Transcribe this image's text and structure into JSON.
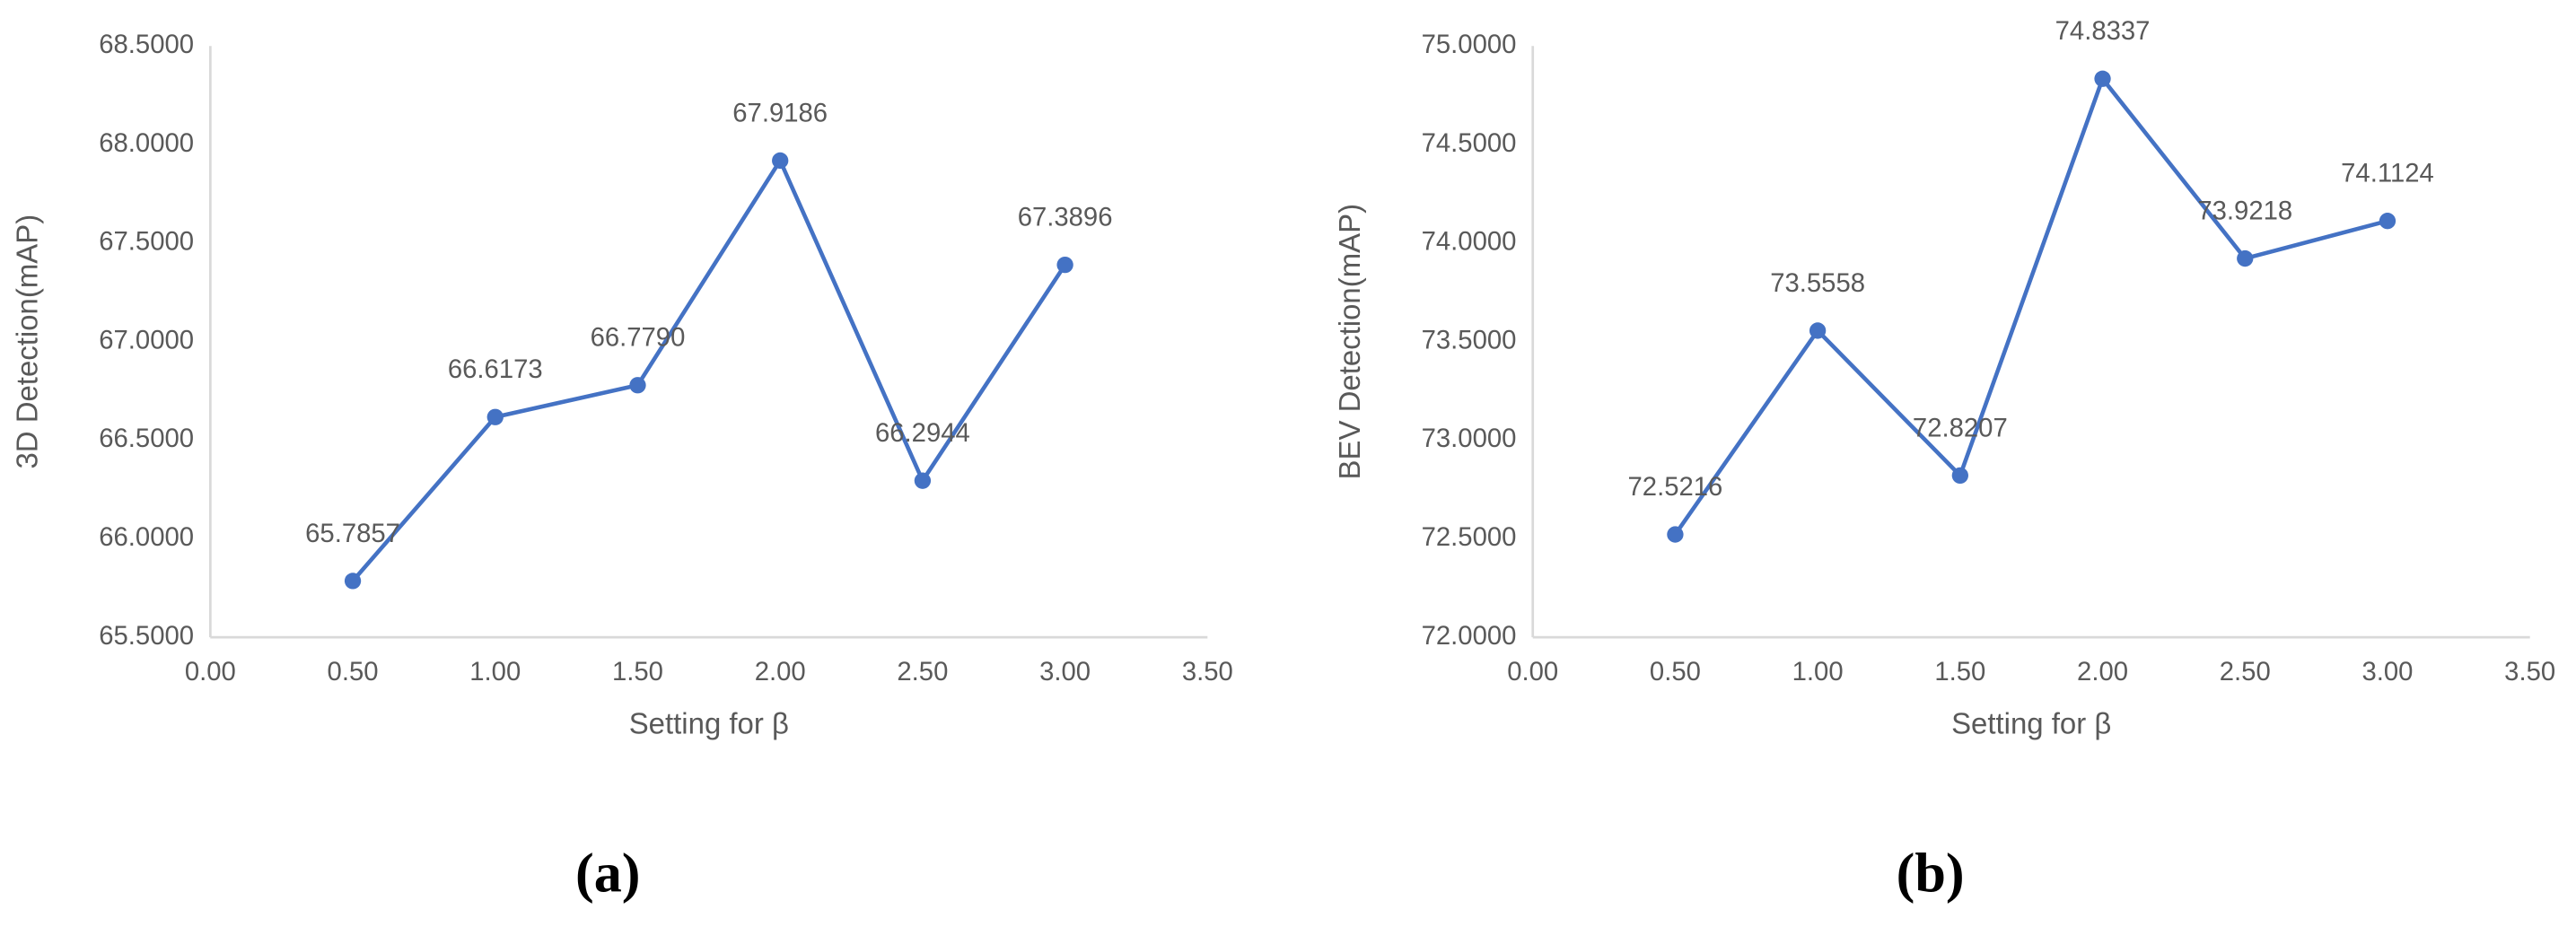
{
  "chart_data": [
    {
      "type": "line",
      "caption": "(a)",
      "xlabel": "Setting for β",
      "ylabel": "3D Detection(mAP)",
      "color": "#4472c4",
      "x": [
        0.5,
        1,
        1.5,
        2,
        2.5,
        3
      ],
      "values": [
        65.7857,
        66.6173,
        66.779,
        67.9186,
        66.2944,
        67.3896
      ],
      "value_labels": [
        "65.7857",
        "66.6173",
        "66.7790",
        "67.9186",
        "66.2944",
        "67.3896"
      ],
      "xlim": [
        0,
        3.5
      ],
      "xticks": [
        {
          "value": 0,
          "label": "0.00"
        },
        {
          "value": 0.5,
          "label": "0.50"
        },
        {
          "value": 1,
          "label": "1.00"
        },
        {
          "value": 1.5,
          "label": "1.50"
        },
        {
          "value": 2,
          "label": "2.00"
        },
        {
          "value": 2.5,
          "label": "2.50"
        },
        {
          "value": 3,
          "label": "3.00"
        },
        {
          "value": 3.5,
          "label": "3.50"
        }
      ],
      "ylim": [
        65.5,
        68.5
      ],
      "yticks": [
        {
          "value": 65.5,
          "label": "65.5000"
        },
        {
          "value": 66,
          "label": "66.0000"
        },
        {
          "value": 66.5,
          "label": "66.5000"
        },
        {
          "value": 67,
          "label": "67.0000"
        },
        {
          "value": 67.5,
          "label": "67.5000"
        },
        {
          "value": 68,
          "label": "68.0000"
        },
        {
          "value": 68.5,
          "label": "68.5000"
        }
      ]
    },
    {
      "type": "line",
      "caption": "(b)",
      "xlabel": "Setting for β",
      "ylabel": "BEV Detection(mAP)",
      "color": "#4472c4",
      "x": [
        0.5,
        1,
        1.5,
        2,
        2.5,
        3
      ],
      "values": [
        72.5216,
        73.5558,
        72.8207,
        74.8337,
        73.9218,
        74.1124
      ],
      "value_labels": [
        "72.5216",
        "73.5558",
        "72.8207",
        "74.8337",
        "73.9218",
        "74.1124"
      ],
      "xlim": [
        0,
        3.5
      ],
      "xticks": [
        {
          "value": 0,
          "label": "0.00"
        },
        {
          "value": 0.5,
          "label": "0.50"
        },
        {
          "value": 1,
          "label": "1.00"
        },
        {
          "value": 1.5,
          "label": "1.50"
        },
        {
          "value": 2,
          "label": "2.00"
        },
        {
          "value": 2.5,
          "label": "2.50"
        },
        {
          "value": 3,
          "label": "3.00"
        },
        {
          "value": 3.5,
          "label": "3.50"
        }
      ],
      "ylim": [
        72,
        75
      ],
      "yticks": [
        {
          "value": 72,
          "label": "72.0000"
        },
        {
          "value": 72.5,
          "label": "72.5000"
        },
        {
          "value": 73,
          "label": "73.0000"
        },
        {
          "value": 73.5,
          "label": "73.5000"
        },
        {
          "value": 74,
          "label": "74.0000"
        },
        {
          "value": 74.5,
          "label": "74.5000"
        },
        {
          "value": 75,
          "label": "75.0000"
        }
      ]
    }
  ]
}
